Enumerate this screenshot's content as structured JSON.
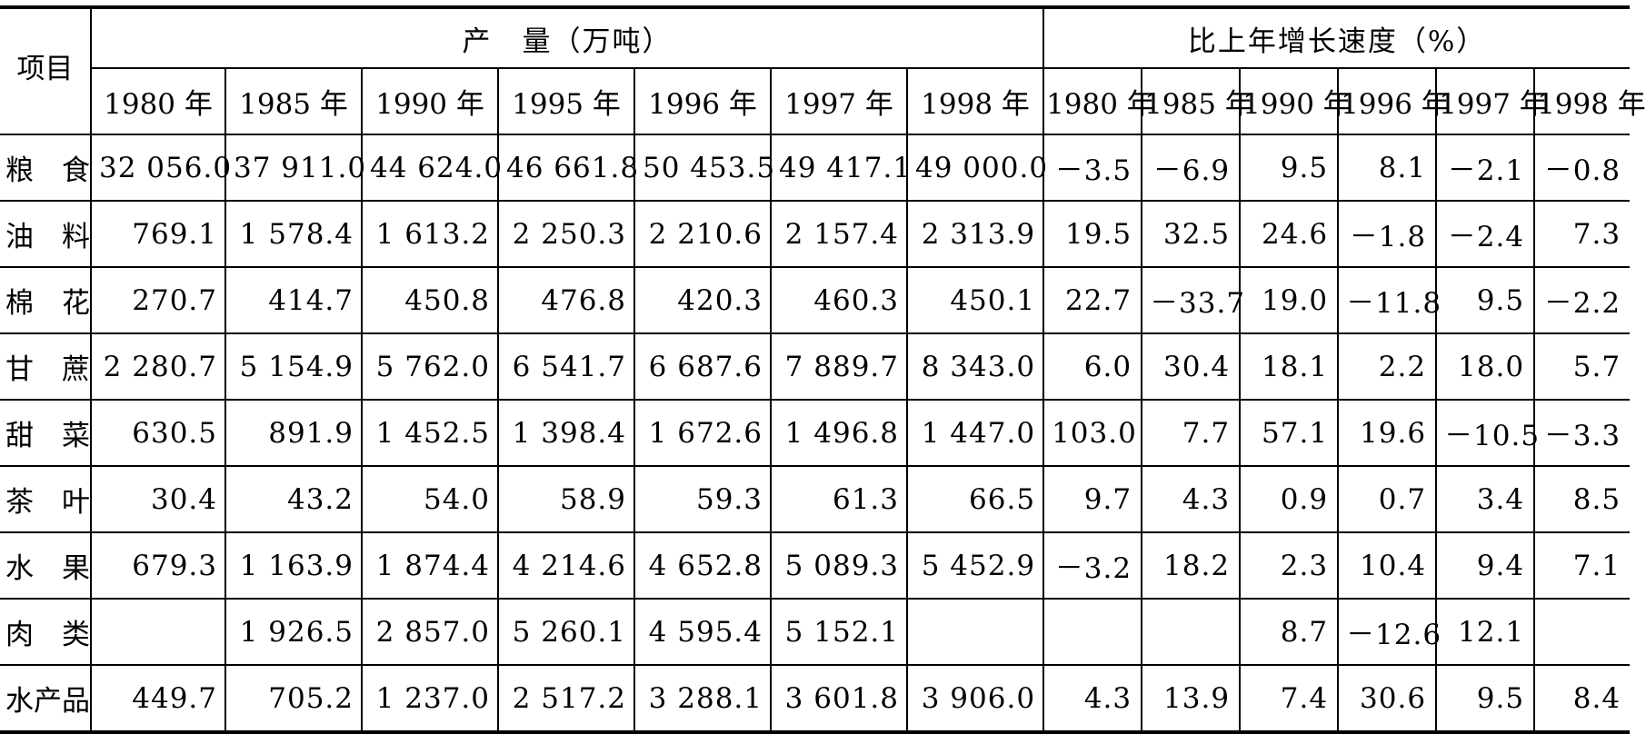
{
  "header": {
    "item_label": "项目",
    "production_label": "产　量（万吨）",
    "growth_label": "比上年增长速度（%）",
    "production_years": [
      "1980 年",
      "1985 年",
      "1990 年",
      "1995 年",
      "1996 年",
      "1997 年",
      "1998 年"
    ],
    "growth_years": [
      "1980 年",
      "1985 年",
      "1990 年",
      "1996 年",
      "1997 年",
      "1998 年"
    ]
  },
  "rows": [
    {
      "name": "粮　食",
      "production": [
        "32 056.0",
        "37 911.0",
        "44 624.0",
        "46 661.8",
        "50 453.5",
        "49 417.1",
        "49 000.0"
      ],
      "growth": [
        "－3.5",
        "－6.9",
        "9.5",
        "8.1",
        "－2.1",
        "－0.8"
      ]
    },
    {
      "name": "油　料",
      "production": [
        "769.1",
        "1 578.4",
        "1 613.2",
        "2 250.3",
        "2 210.6",
        "2 157.4",
        "2 313.9"
      ],
      "growth": [
        "19.5",
        "32.5",
        "24.6",
        "－1.8",
        "－2.4",
        "7.3"
      ]
    },
    {
      "name": "棉　花",
      "production": [
        "270.7",
        "414.7",
        "450.8",
        "476.8",
        "420.3",
        "460.3",
        "450.1"
      ],
      "growth": [
        "22.7",
        "－33.7",
        "19.0",
        "－11.8",
        "9.5",
        "－2.2"
      ]
    },
    {
      "name": "甘　蔗",
      "production": [
        "2 280.7",
        "5 154.9",
        "5 762.0",
        "6 541.7",
        "6 687.6",
        "7 889.7",
        "8 343.0"
      ],
      "growth": [
        "6.0",
        "30.4",
        "18.1",
        "2.2",
        "18.0",
        "5.7"
      ]
    },
    {
      "name": "甜　菜",
      "production": [
        "630.5",
        "891.9",
        "1 452.5",
        "1 398.4",
        "1 672.6",
        "1 496.8",
        "1 447.0"
      ],
      "growth": [
        "103.0",
        "7.7",
        "57.1",
        "19.6",
        "－10.5",
        "－3.3"
      ]
    },
    {
      "name": "茶　叶",
      "production": [
        "30.4",
        "43.2",
        "54.0",
        "58.9",
        "59.3",
        "61.3",
        "66.5"
      ],
      "growth": [
        "9.7",
        "4.3",
        "0.9",
        "0.7",
        "3.4",
        "8.5"
      ]
    },
    {
      "name": "水　果",
      "production": [
        "679.3",
        "1 163.9",
        "1 874.4",
        "4 214.6",
        "4 652.8",
        "5 089.3",
        "5 452.9"
      ],
      "growth": [
        "－3.2",
        "18.2",
        "2.3",
        "10.4",
        "9.4",
        "7.1"
      ]
    },
    {
      "name": "肉　类",
      "production": [
        "",
        "1 926.5",
        "2 857.0",
        "5 260.1",
        "4 595.4",
        "5 152.1",
        ""
      ],
      "growth": [
        "",
        "",
        "8.7",
        "－12.6",
        "12.1",
        ""
      ]
    },
    {
      "name": "水产品",
      "production": [
        "449.7",
        "705.2",
        "1 237.0",
        "2 517.2",
        "3 288.1",
        "3 601.8",
        "3 906.0"
      ],
      "growth": [
        "4.3",
        "13.9",
        "7.4",
        "30.6",
        "9.5",
        "8.4"
      ]
    }
  ]
}
